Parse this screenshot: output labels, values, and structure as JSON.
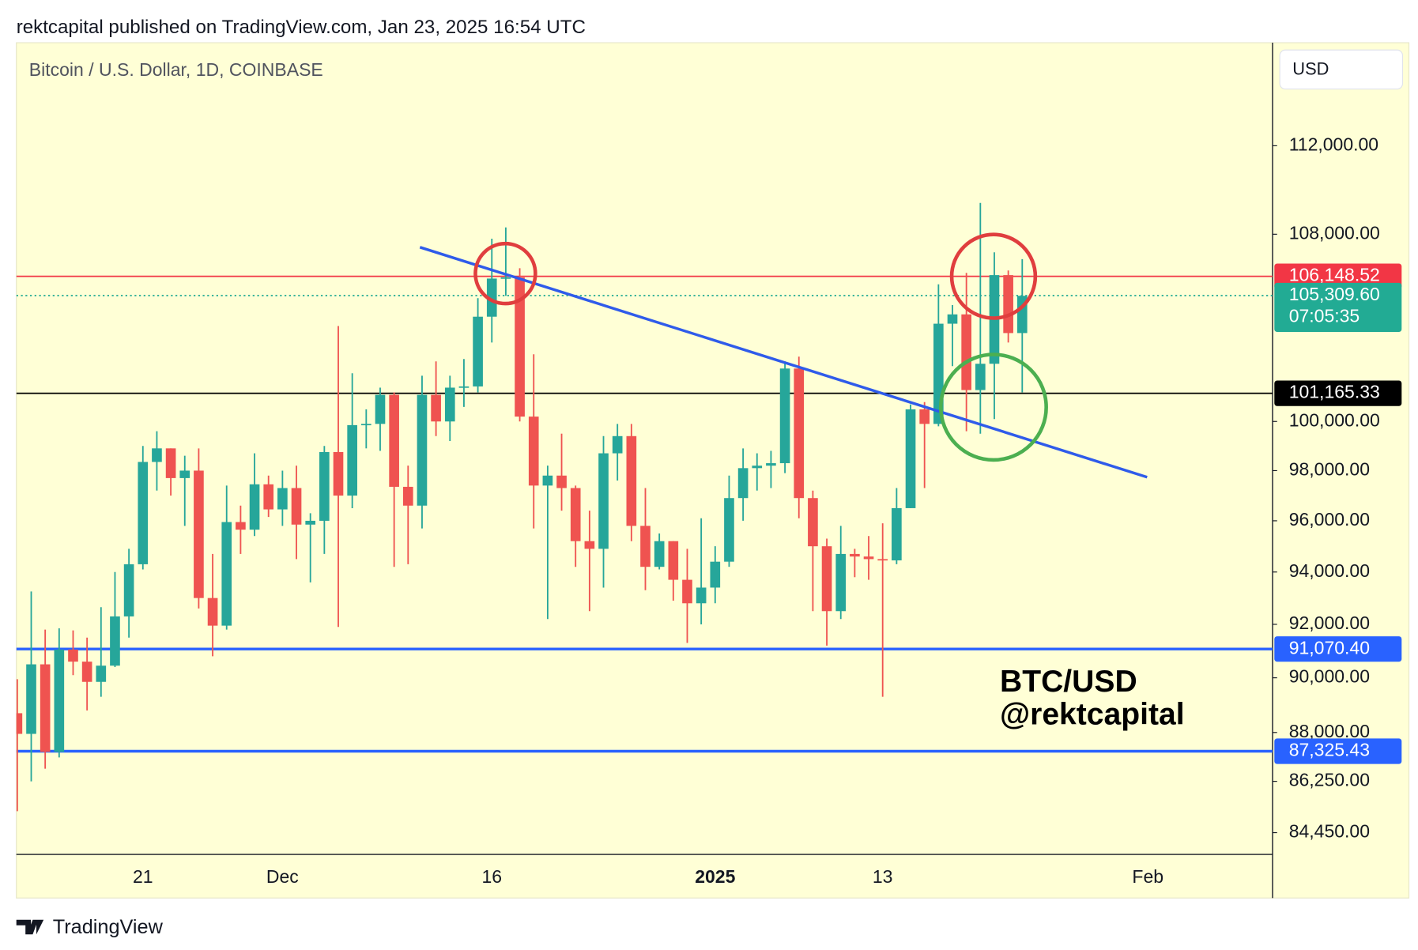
{
  "header": {
    "text": "rektcapital published on TradingView.com, Jan 23, 2025 16:54 UTC"
  },
  "footer": {
    "brand": "TradingView"
  },
  "chart_data": {
    "type": "candlestick",
    "title": "Bitcoin / U.S. Dollar, 1D, COINBASE",
    "currency": "USD",
    "annotations": [
      "BTC/USD",
      "@rektcapital"
    ],
    "log_scale": true,
    "up_color": "#26a69a",
    "down_color": "#ef5350",
    "categories": [
      null,
      null,
      null,
      null,
      null,
      null,
      null,
      null,
      null,
      "21",
      null,
      null,
      null,
      null,
      null,
      null,
      null,
      null,
      null,
      "Dec",
      null,
      null,
      null,
      null,
      null,
      null,
      null,
      null,
      null,
      null,
      null,
      null,
      null,
      null,
      "16",
      null,
      null,
      null,
      null,
      null,
      null,
      null,
      null,
      null,
      null,
      null,
      null,
      null,
      null,
      null,
      "2025",
      null,
      null,
      null,
      null,
      null,
      null,
      null,
      null,
      null,
      null,
      null,
      "13",
      null,
      null,
      null,
      null,
      null,
      null,
      null,
      null,
      null,
      null,
      null,
      null,
      null,
      null,
      null,
      null,
      null,
      null,
      "Feb",
      null,
      null,
      null,
      null,
      null,
      null,
      null,
      null
    ],
    "series": [
      {
        "open": [
          88700,
          87950,
          90500,
          87300,
          91050,
          90600,
          89850,
          90450,
          92300,
          94300,
          98350,
          98900,
          97700,
          98000,
          93000,
          91950,
          95950,
          95650,
          97450,
          96450,
          97300,
          95850,
          96000,
          98750,
          97000,
          99850,
          99900,
          101100,
          97350,
          96600,
          101100,
          100000,
          101400,
          101450,
          104400,
          106050,
          106100,
          100200,
          97400,
          97800,
          97300,
          95200,
          94900,
          98700,
          99400,
          95800,
          94200,
          95200,
          93700,
          92800,
          93400,
          94400,
          96900,
          98100,
          98200,
          98300,
          102200,
          96900,
          95000,
          92500,
          94700,
          94600,
          94500,
          94450,
          96500,
          100500,
          99900,
          104100,
          104500,
          101300,
          102400,
          106200,
          103700,
          null,
          null,
          null,
          null,
          null,
          null,
          null,
          null,
          null,
          null,
          null,
          null,
          null,
          null,
          null,
          null,
          null
        ],
        "high": [
          89950,
          93250,
          91800,
          91850,
          91770,
          91500,
          92650,
          94000,
          94900,
          99000,
          99600,
          98900,
          98600,
          98900,
          94700,
          97400,
          96600,
          98700,
          97800,
          98000,
          98200,
          96300,
          99000,
          104000,
          102000,
          100500,
          101400,
          101200,
          98200,
          101900,
          102500,
          101900,
          102600,
          105200,
          107800,
          108300,
          106500,
          102800,
          98200,
          99500,
          97400,
          96400,
          99400,
          99900,
          99900,
          97300,
          95500,
          95200,
          94900,
          96100,
          95000,
          97800,
          98900,
          98700,
          98800,
          102500,
          102700,
          97200,
          95300,
          95800,
          94900,
          95400,
          95900,
          97300,
          100700,
          100800,
          105800,
          104900,
          106300,
          109400,
          107200,
          106400,
          106900,
          null,
          null,
          null,
          null,
          null,
          null,
          null,
          null,
          null,
          null,
          null,
          null,
          null,
          null,
          null,
          null,
          null
        ],
        "low": [
          85200,
          86250,
          86700,
          87100,
          90100,
          88800,
          89300,
          90400,
          91500,
          94100,
          97200,
          97000,
          95800,
          92600,
          90800,
          91800,
          94700,
          95400,
          96150,
          95800,
          94500,
          93600,
          94700,
          91900,
          96500,
          98900,
          98800,
          94200,
          94300,
          95700,
          99400,
          99200,
          100600,
          101200,
          103300,
          105300,
          100000,
          95700,
          92200,
          96400,
          94200,
          92500,
          93400,
          97600,
          95200,
          93300,
          94100,
          92900,
          91300,
          92000,
          92800,
          94200,
          96000,
          97200,
          97300,
          97900,
          96100,
          92500,
          91200,
          92200,
          93800,
          93700,
          89300,
          94300,
          96500,
          97300,
          99800,
          102300,
          99600,
          99500,
          100100,
          103300,
          101200,
          null,
          null,
          null,
          null,
          null,
          null,
          null,
          null,
          null,
          null,
          null,
          null,
          null,
          null,
          null,
          null,
          null
        ],
        "close": [
          87950,
          90500,
          87300,
          91050,
          90600,
          89850,
          90450,
          92300,
          94300,
          98350,
          98900,
          97700,
          98000,
          93000,
          91950,
          95950,
          95650,
          97450,
          96450,
          97300,
          95850,
          96000,
          98750,
          97000,
          99850,
          99900,
          101100,
          97350,
          96600,
          101100,
          100000,
          101400,
          101450,
          104400,
          106050,
          106100,
          100200,
          97400,
          97800,
          97300,
          95200,
          94900,
          98700,
          99400,
          95800,
          94200,
          95200,
          93700,
          92800,
          93400,
          94400,
          96900,
          98100,
          98200,
          98300,
          102200,
          96900,
          95000,
          92500,
          94700,
          94600,
          94500,
          94450,
          96500,
          100500,
          99900,
          104100,
          104500,
          101300,
          102400,
          106200,
          103700,
          105300,
          null,
          null,
          null,
          null,
          null,
          null,
          null,
          null,
          null,
          null,
          null,
          null,
          null,
          null,
          null,
          null,
          null
        ]
      }
    ],
    "price_lines": [
      {
        "value": 106148.52,
        "label": "106,148.52",
        "color": "#f23645",
        "style": "solid"
      },
      {
        "value": 105309.6,
        "label": "105,309.60",
        "countdown": "07:05:35",
        "color": "#22ab94",
        "style": "dotted"
      },
      {
        "value": 101165.33,
        "label": "101,165.33",
        "color": "#000000",
        "style": "solid"
      },
      {
        "value": 91070.4,
        "label": "91,070.40",
        "color": "#2962ff",
        "style": "thick"
      },
      {
        "value": 87325.43,
        "label": "87,325.43",
        "color": "#2962ff",
        "style": "thick"
      }
    ],
    "ylim": [
      83700,
      116800
    ],
    "yticks": [
      {
        "value": 112000,
        "label": "112,000.00"
      },
      {
        "value": 108000,
        "label": "108,000.00"
      },
      {
        "value": 100000,
        "label": "100,000.00"
      },
      {
        "value": 98000,
        "label": "98,000.00"
      },
      {
        "value": 96000,
        "label": "96,000.00"
      },
      {
        "value": 94000,
        "label": "94,000.00"
      },
      {
        "value": 92000,
        "label": "92,000.00"
      },
      {
        "value": 90000,
        "label": "90,000.00"
      },
      {
        "value": 88000,
        "label": "88,000.00"
      },
      {
        "value": 86250,
        "label": "86,250.00"
      },
      {
        "value": 84450,
        "label": "84,450.00"
      }
    ]
  }
}
